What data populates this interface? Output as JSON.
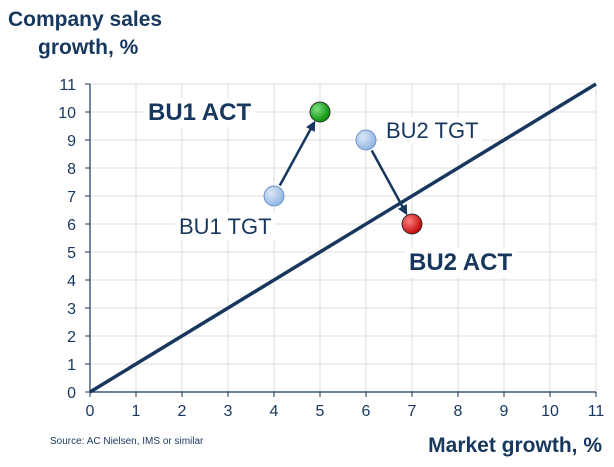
{
  "chart_data": {
    "type": "scatter",
    "ylabel_line1": "Company sales",
    "ylabel_line2": "growth, %",
    "xlabel": "Market growth, %",
    "xlim": [
      0,
      11
    ],
    "ylim": [
      0,
      11
    ],
    "xticks": [
      0,
      1,
      2,
      3,
      4,
      5,
      6,
      7,
      8,
      9,
      10,
      11
    ],
    "yticks": [
      0,
      1,
      2,
      3,
      4,
      5,
      6,
      7,
      8,
      9,
      10,
      11
    ],
    "grid": true,
    "reference_line": {
      "from": [
        0,
        0
      ],
      "to": [
        11,
        11
      ]
    },
    "points": [
      {
        "label": "BU1 TGT",
        "x": 4,
        "y": 7,
        "color": "#8db3e2",
        "label_bold": false,
        "label_pos": "bottom-left"
      },
      {
        "label": "BU1 ACT",
        "x": 5,
        "y": 10,
        "color": "#00a000",
        "label_bold": true,
        "label_pos": "left"
      },
      {
        "label": "BU2 TGT",
        "x": 6,
        "y": 9,
        "color": "#8db3e2",
        "label_bold": false,
        "label_pos": "top-right"
      },
      {
        "label": "BU2 ACT",
        "x": 7,
        "y": 6,
        "color": "#d00000",
        "label_bold": true,
        "label_pos": "bottom"
      }
    ],
    "arrows": [
      {
        "from": [
          4,
          7
        ],
        "to": [
          5,
          10
        ]
      },
      {
        "from": [
          6,
          9
        ],
        "to": [
          7,
          6
        ]
      }
    ],
    "colors": {
      "line": "#17375e",
      "text": "#17375e",
      "grid": "#dddddd",
      "axis": "#17375e"
    }
  },
  "source_note": "Source: AC Nielsen, IMS or similar"
}
